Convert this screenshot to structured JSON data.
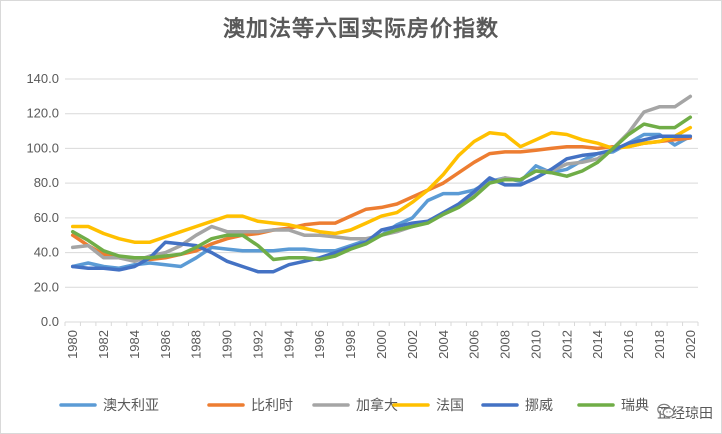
{
  "chart_data": {
    "type": "line",
    "title": "澳加法等六国实际房价指数",
    "xlabel": "",
    "ylabel": "",
    "ylim": [
      0,
      140
    ],
    "yticks": [
      "0.0",
      "20.0",
      "40.0",
      "60.0",
      "80.0",
      "100.0",
      "120.0",
      "140.0"
    ],
    "x": [
      "1980",
      "1981",
      "1982",
      "1983",
      "1984",
      "1985",
      "1986",
      "1987",
      "1988",
      "1989",
      "1990",
      "1991",
      "1992",
      "1993",
      "1994",
      "1995",
      "1996",
      "1997",
      "1998",
      "1999",
      "2000",
      "2001",
      "2002",
      "2003",
      "2004",
      "2005",
      "2006",
      "2007",
      "2008",
      "2009",
      "2010",
      "2011",
      "2012",
      "2013",
      "2014",
      "2015",
      "2016",
      "2017",
      "2018",
      "2019",
      "2020"
    ],
    "xtick_labels": [
      "1980",
      "1982",
      "1984",
      "1986",
      "1988",
      "1990",
      "1992",
      "1994",
      "1996",
      "1998",
      "2000",
      "2002",
      "2004",
      "2006",
      "2008",
      "2010",
      "2012",
      "2014",
      "2016",
      "2018",
      "2020"
    ],
    "legend_position": "bottom",
    "series": [
      {
        "name": "澳大利亚",
        "color": "#5b9bd5",
        "values": [
          32,
          34,
          32,
          31,
          33,
          34,
          33,
          32,
          37,
          43,
          42,
          41,
          41,
          41,
          42,
          42,
          41,
          41,
          44,
          47,
          50,
          56,
          60,
          70,
          74,
          74,
          76,
          81,
          83,
          81,
          90,
          86,
          88,
          93,
          97,
          98,
          103,
          108,
          108,
          102,
          107
        ]
      },
      {
        "name": "比利时",
        "color": "#ed7d31",
        "values": [
          50,
          44,
          39,
          37,
          36,
          36,
          37,
          39,
          41,
          45,
          48,
          50,
          51,
          53,
          54,
          56,
          57,
          57,
          61,
          65,
          66,
          68,
          72,
          76,
          80,
          86,
          92,
          97,
          98,
          98,
          99,
          100,
          101,
          101,
          100,
          101,
          101,
          103,
          104,
          105,
          106
        ]
      },
      {
        "name": "加拿大",
        "color": "#a5a5a5",
        "values": [
          43,
          44,
          37,
          37,
          35,
          38,
          40,
          44,
          50,
          55,
          52,
          52,
          52,
          53,
          53,
          50,
          50,
          49,
          48,
          48,
          50,
          52,
          55,
          58,
          62,
          67,
          74,
          80,
          83,
          82,
          87,
          87,
          91,
          92,
          94,
          100,
          109,
          121,
          124,
          124,
          130
        ]
      },
      {
        "name": "法国",
        "color": "#ffc000",
        "values": [
          55,
          55,
          51,
          48,
          46,
          46,
          49,
          52,
          55,
          58,
          61,
          61,
          58,
          57,
          56,
          54,
          52,
          51,
          53,
          57,
          61,
          63,
          69,
          76,
          85,
          96,
          104,
          109,
          108,
          101,
          105,
          109,
          108,
          105,
          103,
          100,
          101,
          103,
          104,
          107,
          112
        ]
      },
      {
        "name": "挪威",
        "color": "#4472c4",
        "values": [
          32,
          31,
          31,
          30,
          32,
          37,
          46,
          45,
          44,
          40,
          35,
          32,
          29,
          29,
          33,
          35,
          37,
          40,
          43,
          46,
          53,
          55,
          57,
          58,
          63,
          68,
          75,
          83,
          79,
          79,
          83,
          88,
          94,
          96,
          97,
          99,
          103,
          105,
          107,
          107,
          107
        ]
      },
      {
        "name": "瑞典",
        "color": "#70ad47",
        "values": [
          52,
          47,
          41,
          38,
          37,
          37,
          38,
          39,
          43,
          48,
          50,
          50,
          44,
          36,
          37,
          37,
          36,
          38,
          42,
          45,
          50,
          53,
          55,
          57,
          62,
          66,
          72,
          80,
          82,
          82,
          87,
          86,
          84,
          87,
          92,
          100,
          108,
          114,
          112,
          112,
          118
        ]
      }
    ]
  },
  "watermark_text": "正经琼田",
  "watermark_icon": "wechat-icon"
}
